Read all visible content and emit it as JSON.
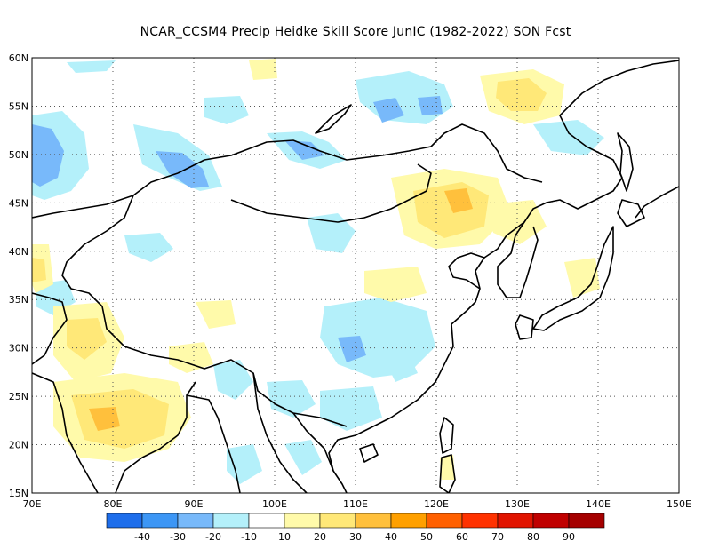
{
  "title": "NCAR_CCSM4 Precip Heidke Skill Score JunIC (1982-2022) SON Fcst",
  "map": {
    "lon_range": [
      70,
      150
    ],
    "lat_range": [
      15,
      60
    ],
    "lon_ticks": [
      "70E",
      "80E",
      "90E",
      "100E",
      "110E",
      "120E",
      "130E",
      "140E",
      "150E"
    ],
    "lat_ticks": [
      "15N",
      "20N",
      "25N",
      "30N",
      "35N",
      "40N",
      "45N",
      "50N",
      "55N",
      "60N"
    ],
    "grid_lines": "dotted",
    "background": "#ffffff",
    "coastline_color": "#000000"
  },
  "colorbar": {
    "labels": [
      "-40",
      "-30",
      "-20",
      "-10",
      "10",
      "20",
      "30",
      "40",
      "50",
      "60",
      "70",
      "80",
      "90"
    ],
    "colors": [
      "#1e6eeb",
      "#3c96f5",
      "#78b9fa",
      "#b4f0fa",
      "#ffffff",
      "#fffaaa",
      "#ffe878",
      "#ffc03c",
      "#ffa000",
      "#ff6000",
      "#ff3200",
      "#e11400",
      "#c00000",
      "#a50000"
    ]
  }
}
